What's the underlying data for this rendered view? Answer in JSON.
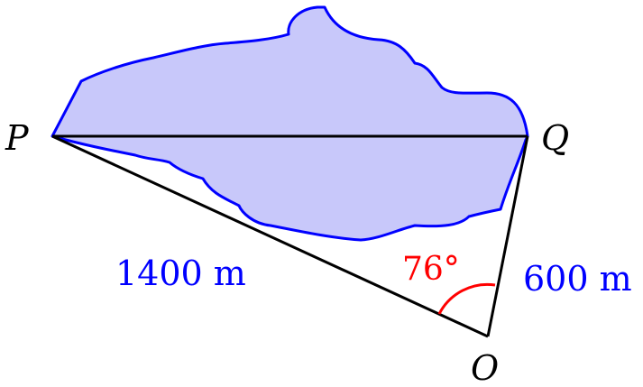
{
  "diagram": {
    "points": {
      "P": "P",
      "Q": "Q",
      "O": "O"
    },
    "side_PO": "1400 m",
    "side_QO": "600 m",
    "angle_O": "76°"
  },
  "colors": {
    "lake_fill": "#c8c8fa",
    "lake_stroke": "#0000ff",
    "lines": "#000000",
    "measure_text": "#0000ff",
    "angle": "#ff0000"
  }
}
